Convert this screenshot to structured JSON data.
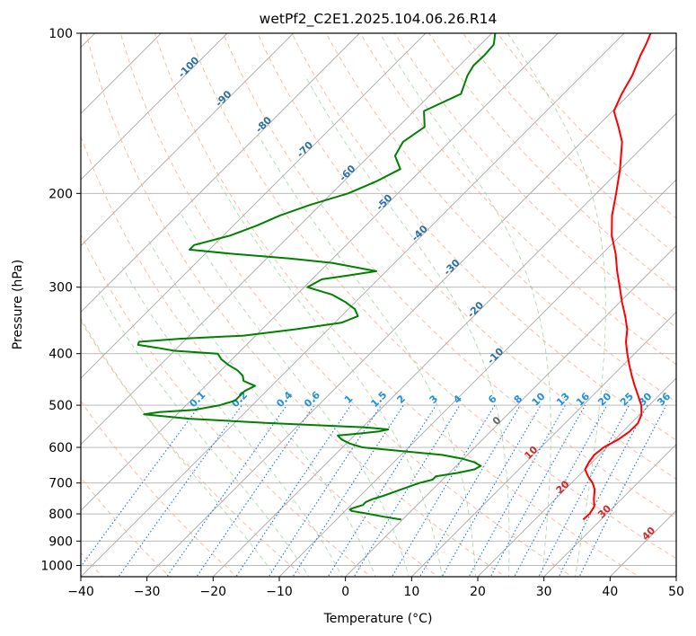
{
  "chart_data": {
    "type": "line",
    "title": "wetPf2_C2E1.2025.104.06.26.R14",
    "xlabel": "Temperature (°C)",
    "ylabel": "Pressure (hPa)",
    "xlim": [
      -40,
      50
    ],
    "ylim": [
      1050,
      100
    ],
    "y_scale": "log",
    "grid": true,
    "x_ticks": [
      -40,
      -30,
      -20,
      -10,
      0,
      10,
      20,
      30,
      40,
      50
    ],
    "x_tick_labels": [
      "−40",
      "−30",
      "−20",
      "−10",
      "0",
      "10",
      "20",
      "30",
      "40",
      "50"
    ],
    "y_ticks": [
      100,
      200,
      300,
      400,
      500,
      600,
      700,
      800,
      900,
      1000
    ],
    "y_tick_labels": [
      "100",
      "200",
      "300",
      "400",
      "500",
      "600",
      "700",
      "800",
      "900",
      "1000"
    ],
    "skew_isotherms": [
      -120,
      -110,
      -100,
      -90,
      -80,
      -70,
      -60,
      -50,
      -40,
      -30,
      -20,
      -10,
      0,
      10,
      20,
      30,
      40,
      50
    ],
    "dry_adiabats": [
      -40,
      -30,
      -20,
      -10,
      0,
      10,
      20,
      30,
      40,
      50,
      60,
      70,
      80,
      90,
      100,
      110,
      120,
      130,
      140
    ],
    "moist_adiabats": [
      -10,
      -5,
      0,
      5,
      10,
      15,
      20,
      25,
      30,
      35
    ],
    "mixing_ratio_labels": [
      "0.1",
      "0.2",
      "0.4",
      "0.6",
      "1",
      "1.5",
      "2",
      "3",
      "4",
      "6",
      "8",
      "10",
      "13",
      "16",
      "20",
      "25",
      "30",
      "36"
    ],
    "mixing_ratio_values": [
      0.1,
      0.2,
      0.4,
      0.6,
      1,
      1.5,
      2,
      3,
      4,
      6,
      8,
      10,
      13,
      16,
      20,
      25,
      30,
      36
    ],
    "isotherm_labels_blue": [
      "-100",
      "-90",
      "-80",
      "-70",
      "-60",
      "-50",
      "-40",
      "-30",
      "-20",
      "-10"
    ],
    "isotherm_labels_zero": [
      "0"
    ],
    "isotherm_labels_red": [
      "10",
      "20",
      "30",
      "40"
    ],
    "series": [
      {
        "color": "#ff0000",
        "pressure": [
          820,
          800,
          775,
          750,
          720,
          700,
          680,
          660,
          640,
          620,
          600,
          580,
          560,
          540,
          520,
          500,
          480,
          460,
          440,
          420,
          400,
          380,
          360,
          340,
          320,
          300,
          280,
          260,
          240,
          220,
          200,
          180,
          160,
          150,
          140,
          130,
          120,
          110,
          105,
          100
        ],
        "temperature": [
          27.3,
          27.4,
          27.0,
          25.8,
          24.5,
          23.2,
          21.5,
          20.0,
          19.5,
          19.2,
          19.5,
          20.5,
          21.0,
          21.0,
          20.2,
          18.8,
          16.9,
          14.9,
          12.9,
          10.9,
          8.9,
          6.9,
          5.2,
          2.9,
          0.3,
          -2.3,
          -5.1,
          -7.9,
          -11.3,
          -14.3,
          -17.0,
          -20.1,
          -23.9,
          -26.7,
          -29.8,
          -31.2,
          -32.4,
          -34.2,
          -35.0,
          -36.0
        ]
      },
      {
        "color": "#008000",
        "pressure": [
          820,
          810,
          800,
          790,
          785,
          780,
          770,
          760,
          750,
          740,
          720,
          700,
          690,
          680,
          670,
          660,
          650,
          640,
          630,
          620,
          600,
          590,
          580,
          570,
          565,
          560,
          555,
          550,
          545,
          540,
          530,
          520,
          515,
          510,
          500,
          490,
          480,
          470,
          460,
          450,
          440,
          430,
          420,
          410,
          400,
          395,
          390,
          385,
          380,
          375,
          370,
          360,
          350,
          340,
          330,
          320,
          310,
          300,
          290,
          285,
          280,
          270,
          265,
          260,
          255,
          250,
          240,
          230,
          220,
          210,
          200,
          190,
          180,
          170,
          160,
          150,
          140,
          130,
          120,
          115,
          110,
          105,
          100
        ],
        "temperature": [
          -0.2,
          -3.3,
          -6.0,
          -9.0,
          -9.5,
          -9.2,
          -8.2,
          -8.2,
          -7.6,
          -6.5,
          -4.8,
          -3.0,
          -1.5,
          -1.5,
          1.3,
          3.3,
          3.7,
          2.2,
          -0.2,
          -3.8,
          -17.0,
          -19.5,
          -21.3,
          -22.5,
          -19.4,
          -16.9,
          -15.8,
          -19.8,
          -27.5,
          -35.0,
          -47.5,
          -55.0,
          -53.0,
          -48.0,
          -44.9,
          -43.3,
          -43.3,
          -43.3,
          -42.5,
          -45.0,
          -45.9,
          -47.5,
          -49.7,
          -51.6,
          -53.0,
          -60.0,
          -63.0,
          -66.4,
          -66.7,
          -61.0,
          -51.8,
          -45.0,
          -39.0,
          -37.5,
          -39.0,
          -41.5,
          -44.6,
          -49.5,
          -48.5,
          -45.0,
          -41.5,
          -49.5,
          -56.5,
          -65.5,
          -73.0,
          -73.0,
          -69.0,
          -66.5,
          -64.5,
          -61.5,
          -57.5,
          -55.1,
          -53.3,
          -56.1,
          -57.0,
          -56.0,
          -58.5,
          -55.5,
          -57.3,
          -57.9,
          -57.8,
          -58.0,
          -59.5
        ]
      }
    ]
  }
}
